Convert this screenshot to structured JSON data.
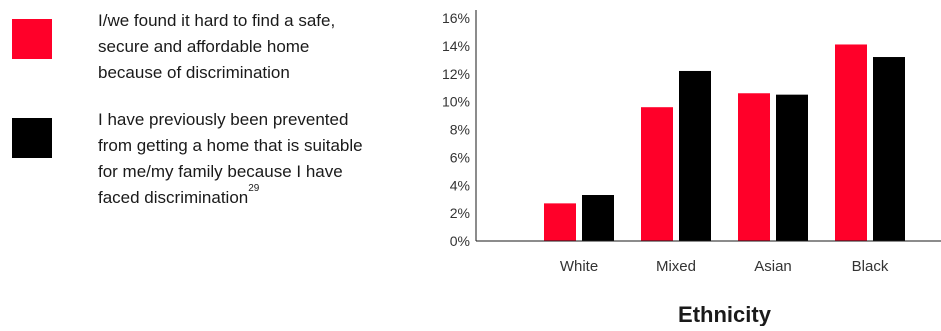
{
  "legend": [
    {
      "label": "I/we found it hard to find a safe, secure and affordable home because of discrimination",
      "lines": [
        "I/we found it hard to find a safe,",
        "secure and affordable home",
        "because of discrimination"
      ],
      "color": "#ff0029"
    },
    {
      "label": "I have previously been prevented from getting a home that is suitable for me/my family because I have faced discrimination",
      "lines": [
        "I have previously been prevented",
        "from getting a home that is suitable",
        "for me/my family because I have",
        "faced discrimination"
      ],
      "footnote": "29",
      "color": "#000000"
    }
  ],
  "chart_data": {
    "type": "bar",
    "categories": [
      "White",
      "Mixed",
      "Asian",
      "Black"
    ],
    "series": [
      {
        "values": [
          2.7,
          9.6,
          10.6,
          14.1
        ],
        "color": "#ff0029"
      },
      {
        "values": [
          3.3,
          12.2,
          10.5,
          13.2
        ],
        "color": "#000000"
      }
    ],
    "xlabel": "Ethnicity",
    "ylim": [
      0,
      16
    ],
    "yticks": [
      0,
      2,
      4,
      6,
      8,
      10,
      12,
      14,
      16
    ],
    "ytick_labels": [
      "0%",
      "2%",
      "4%",
      "6%",
      "8%",
      "10%",
      "12%",
      "14%",
      "16%"
    ],
    "grid": false
  }
}
